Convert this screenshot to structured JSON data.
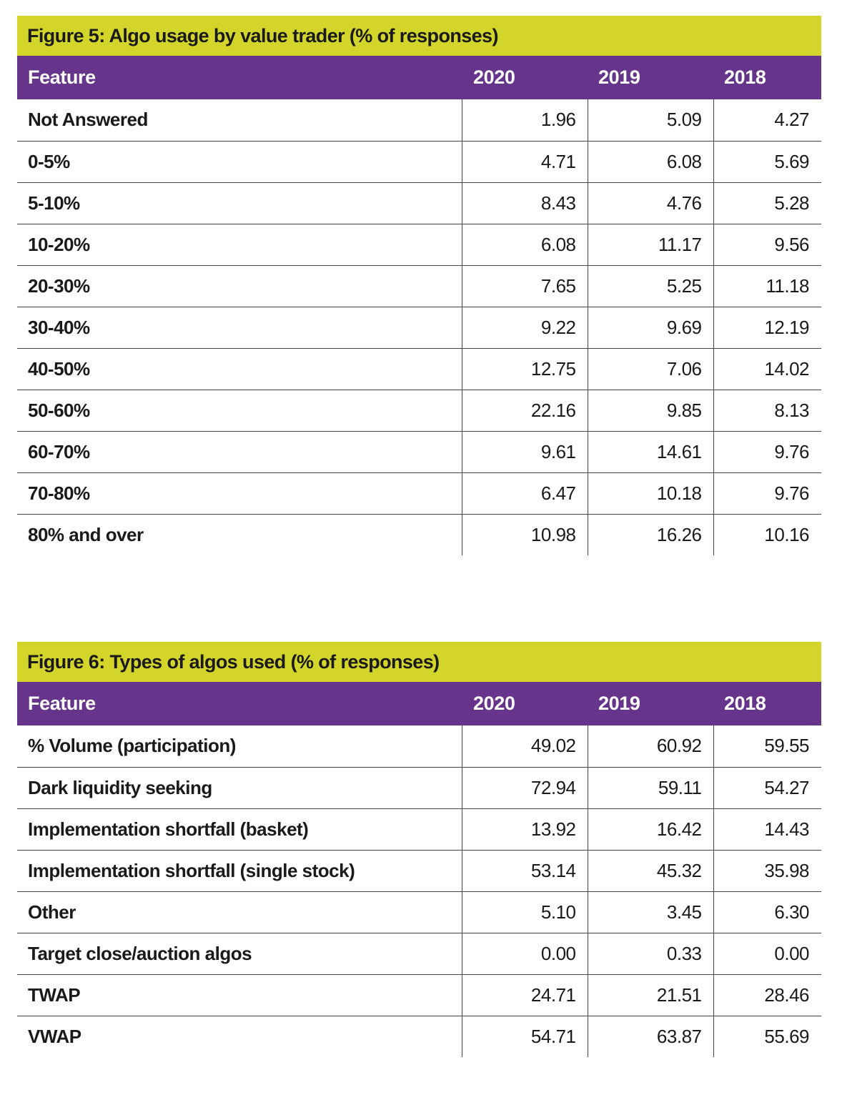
{
  "chart_data": [
    {
      "type": "table",
      "title": "Figure 5: Algo usage by value trader (% of responses)",
      "columns": [
        "Feature",
        "2020",
        "2019",
        "2018"
      ],
      "rows": [
        [
          "Not Answered",
          "1.96",
          "5.09",
          "4.27"
        ],
        [
          "0-5%",
          "4.71",
          "6.08",
          "5.69"
        ],
        [
          "5-10%",
          "8.43",
          "4.76",
          "5.28"
        ],
        [
          "10-20%",
          "6.08",
          "11.17",
          "9.56"
        ],
        [
          "20-30%",
          "7.65",
          "5.25",
          "11.18"
        ],
        [
          "30-40%",
          "9.22",
          "9.69",
          "12.19"
        ],
        [
          "40-50%",
          "12.75",
          "7.06",
          "14.02"
        ],
        [
          "50-60%",
          "22.16",
          "9.85",
          "8.13"
        ],
        [
          "60-70%",
          "9.61",
          "14.61",
          "9.76"
        ],
        [
          "70-80%",
          "6.47",
          "10.18",
          "9.76"
        ],
        [
          "80% and over",
          "10.98",
          "16.26",
          "10.16"
        ]
      ]
    },
    {
      "type": "table",
      "title": "Figure 6: Types of algos used (% of responses)",
      "columns": [
        "Feature",
        "2020",
        "2019",
        "2018"
      ],
      "rows": [
        [
          "% Volume (participation)",
          "49.02",
          "60.92",
          "59.55"
        ],
        [
          "Dark liquidity seeking",
          "72.94",
          "59.11",
          "54.27"
        ],
        [
          "Implementation shortfall (basket)",
          "13.92",
          "16.42",
          "14.43"
        ],
        [
          "Implementation shortfall (single stock)",
          "53.14",
          "45.32",
          "35.98"
        ],
        [
          "Other",
          "5.10",
          "3.45",
          "6.30"
        ],
        [
          "Target close/auction algos",
          "0.00",
          "0.33",
          "0.00"
        ],
        [
          "TWAP",
          "24.71",
          "21.51",
          "28.46"
        ],
        [
          "VWAP",
          "54.71",
          "63.87",
          "55.69"
        ]
      ]
    }
  ],
  "colors": {
    "title_bar": "#d3d52a",
    "header_bar": "#66348a",
    "header_text": "#ffffff",
    "rule": "#444444"
  }
}
